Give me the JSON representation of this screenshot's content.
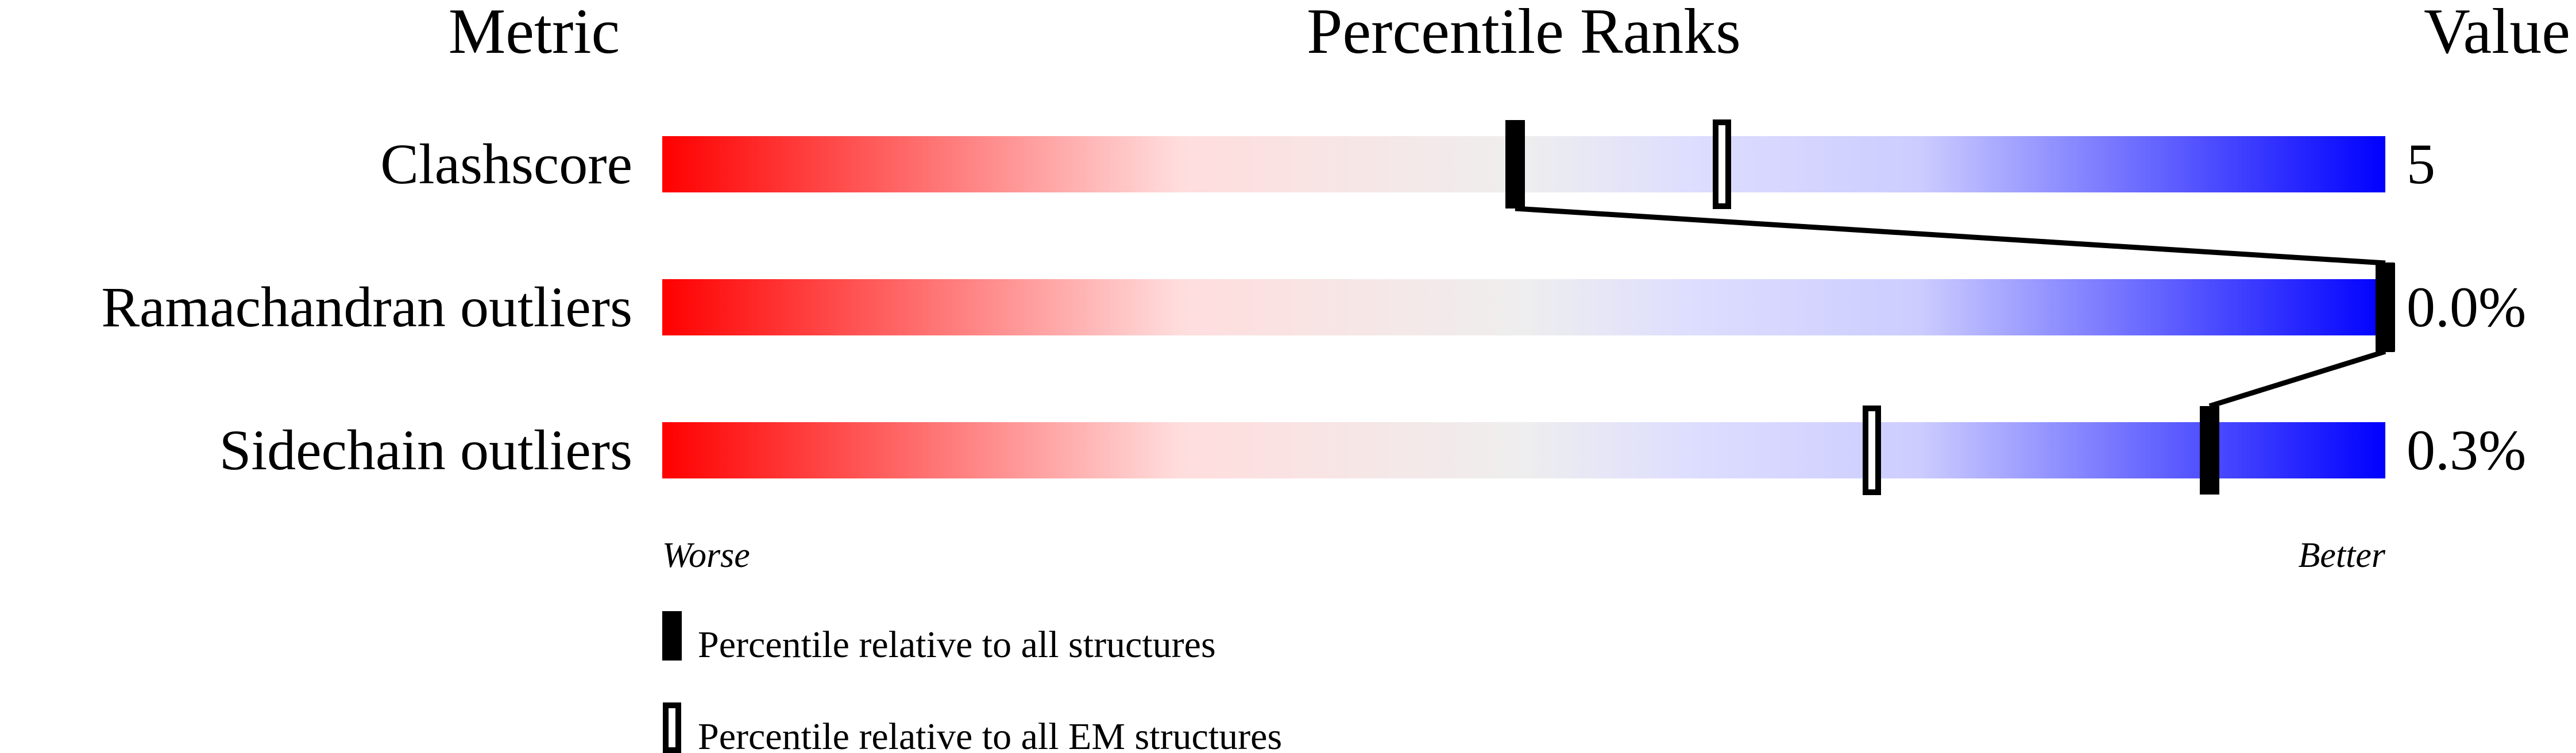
{
  "chart_data": {
    "type": "percentile-slider",
    "headers": {
      "metric": "Metric",
      "ranks": "Percentile Ranks",
      "value": "Value"
    },
    "xlim": [
      0,
      100
    ],
    "axis_labels": {
      "left": "Worse",
      "right": "Better"
    },
    "gradient_colors": [
      "#ff0000",
      "#ffdddd",
      "#eeeeee",
      "#ddddff",
      "#0000ff"
    ],
    "metrics": [
      {
        "name": "Clashscore",
        "value": "5",
        "percentile_all": 49.5,
        "percentile_em": 61.5
      },
      {
        "name": "Ramachandran outliers",
        "value": "0.0%",
        "percentile_all": 100,
        "percentile_em": 100
      },
      {
        "name": "Sidechain outliers",
        "value": "0.3%",
        "percentile_all": 89.8,
        "percentile_em": 70.2
      }
    ],
    "legend": [
      {
        "marker": "filled",
        "label": "Percentile relative to all structures"
      },
      {
        "marker": "open",
        "label": "Percentile relative to all EM structures"
      }
    ]
  }
}
